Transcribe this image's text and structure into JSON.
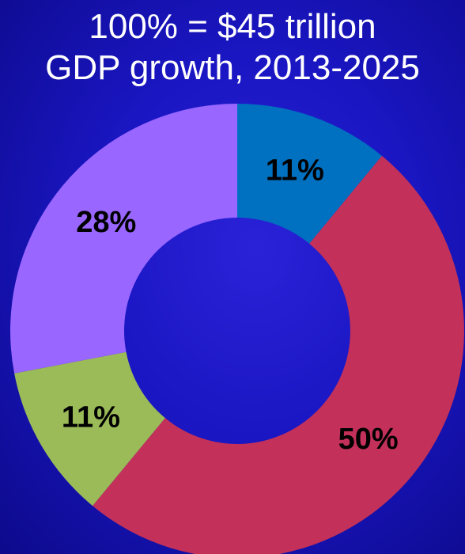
{
  "chart_data": {
    "type": "pie",
    "title": [
      "100% = $45 trillion",
      "GDP growth, 2013-2025"
    ],
    "donut": true,
    "slices": [
      {
        "value": 11,
        "label": "11%",
        "color": "#0070c0"
      },
      {
        "value": 50,
        "label": "50%",
        "color": "#c3315a"
      },
      {
        "value": 11,
        "label": "11%",
        "color": "#9bbb59"
      },
      {
        "value": 28,
        "label": "28%",
        "color": "#9966ff"
      }
    ]
  }
}
